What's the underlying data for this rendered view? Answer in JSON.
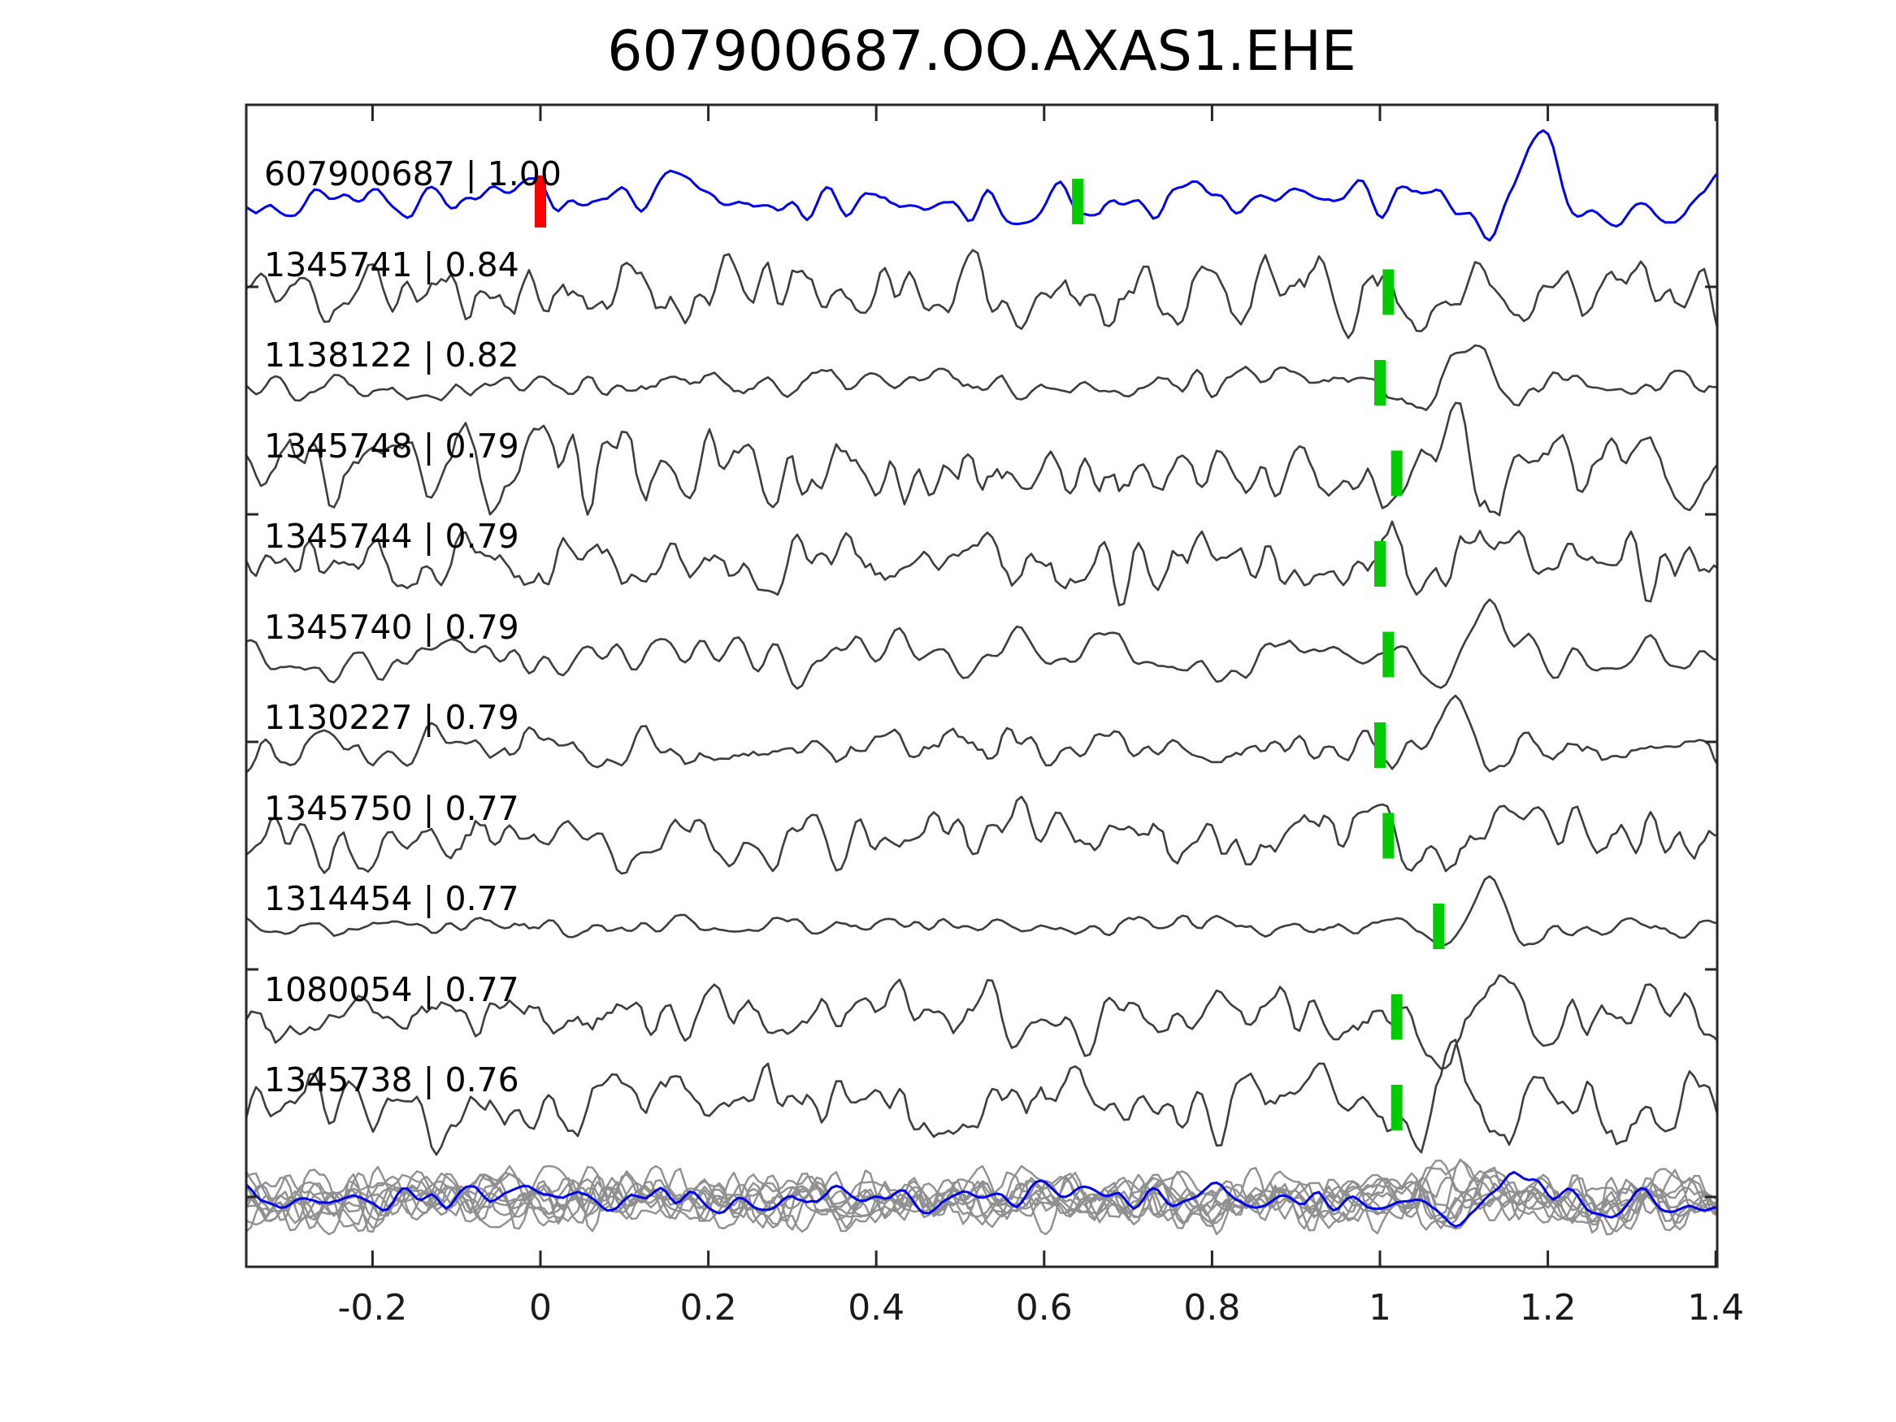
{
  "figure": {
    "title": "607900687.OO.AXAS1.EHE"
  },
  "chart_data": {
    "type": "line",
    "subtype": "seismic-waveform-stack",
    "title": "607900687.OO.AXAS1.EHE",
    "xlabel": "",
    "ylabel": "",
    "xlim": [
      -0.35,
      1.4
    ],
    "grid": false,
    "legend": false,
    "x_ticks": [
      -0.2,
      0,
      0.2,
      0.4,
      0.6,
      0.8,
      1.0,
      1.2,
      1.4
    ],
    "x_tick_labels": [
      "-0.2",
      "0",
      "0.2",
      "0.4",
      "0.6",
      "0.8",
      "1",
      "1.2",
      "1.4"
    ],
    "colors": {
      "template_trace": "#0000ee",
      "detection_trace": "#3d3d3d",
      "overlay_trace": "#909090",
      "pick_marker": "#00cc00",
      "origin_marker": "#ff0000",
      "axis": "#262626",
      "text": "#000000",
      "background": "#ffffff"
    },
    "traces": [
      {
        "id": "607900687",
        "correlation": "1.00",
        "label": "607900687 | 1.00",
        "role": "template",
        "color": "#0000ee",
        "origin_marker_x": 0.0,
        "pick_x": 0.64,
        "render": {
          "seed": 3,
          "amp": 38,
          "smooth": 3,
          "packets": [
            {
              "pc": 1.17,
              "A": 55,
              "w": 0.1,
              "per": 0.155,
              "ph": 0.8
            }
          ]
        }
      },
      {
        "id": "1345741",
        "correlation": "0.84",
        "label": "1345741 | 0.84",
        "role": "detection",
        "color": "#3d3d3d",
        "pick_x": 1.01,
        "render": {
          "seed": 11,
          "amp": 55,
          "smooth": 2,
          "packets": [
            {
              "pc": 1.1,
              "A": 42,
              "w": 0.09,
              "per": 0.13,
              "ph": 0.0
            }
          ]
        }
      },
      {
        "id": "1138122",
        "correlation": "0.82",
        "label": "1138122 | 0.82",
        "role": "detection",
        "color": "#3d3d3d",
        "pick_x": 1.0,
        "render": {
          "seed": 22,
          "amp": 22,
          "smooth": 2,
          "packets": [
            {
              "pc": 1.1,
              "A": 50,
              "w": 0.065,
              "per": 0.14,
              "ph": 1.2
            }
          ]
        }
      },
      {
        "id": "1345748",
        "correlation": "0.79",
        "label": "1345748 | 0.79",
        "role": "detection",
        "color": "#3d3d3d",
        "pick_x": 1.02,
        "render": {
          "seed": 33,
          "amp": 62,
          "smooth": 2,
          "packets": [
            {
              "pc": 1.09,
              "A": 38,
              "w": 0.08,
              "per": 0.12,
              "ph": 2.0
            }
          ]
        }
      },
      {
        "id": "1345744",
        "correlation": "0.79",
        "label": "1345744 | 0.79",
        "role": "detection",
        "color": "#3d3d3d",
        "pick_x": 1.0,
        "render": {
          "seed": 44,
          "amp": 55,
          "smooth": 2,
          "packets": [
            {
              "pc": 1.1,
              "A": 40,
              "w": 0.08,
              "per": 0.12,
              "ph": 0.5
            }
          ]
        }
      },
      {
        "id": "1345740",
        "correlation": "0.79",
        "label": "1345740 | 0.79",
        "role": "detection",
        "color": "#3d3d3d",
        "pick_x": 1.01,
        "render": {
          "seed": 55,
          "amp": 42,
          "smooth": 3,
          "packets": [
            {
              "pc": 1.13,
              "A": 52,
              "w": 0.1,
              "per": 0.17,
              "ph": 1.0
            }
          ]
        }
      },
      {
        "id": "1130227",
        "correlation": "0.79",
        "label": "1130227 | 0.79",
        "role": "detection",
        "color": "#3d3d3d",
        "pick_x": 1.0,
        "render": {
          "seed": 66,
          "amp": 34,
          "smooth": 2,
          "packets": [
            {
              "pc": 1.1,
              "A": 46,
              "w": 0.08,
              "per": 0.14,
              "ph": 2.5
            }
          ]
        }
      },
      {
        "id": "1345750",
        "correlation": "0.77",
        "label": "1345750 | 0.77",
        "role": "detection",
        "color": "#3d3d3d",
        "pick_x": 1.01,
        "render": {
          "seed": 77,
          "amp": 48,
          "smooth": 2,
          "packets": [
            {
              "pc": 1.12,
              "A": 52,
              "w": 0.09,
              "per": 0.15,
              "ph": 0.3
            }
          ]
        }
      },
      {
        "id": "1314454",
        "correlation": "0.77",
        "label": "1314454 | 0.77",
        "role": "detection",
        "color": "#3d3d3d",
        "pick_x": 1.07,
        "render": {
          "seed": 88,
          "amp": 14,
          "smooth": 2,
          "packets": [
            {
              "pc": 1.13,
              "A": 56,
              "w": 0.06,
              "per": 0.13,
              "ph": 1.6
            }
          ]
        }
      },
      {
        "id": "1080054",
        "correlation": "0.77",
        "label": "1080054 | 0.77",
        "role": "detection",
        "color": "#3d3d3d",
        "pick_x": 1.02,
        "render": {
          "seed": 99,
          "amp": 48,
          "smooth": 2,
          "packets": [
            {
              "pc": 1.12,
              "A": 48,
              "w": 0.09,
              "per": 0.14,
              "ph": 0.9
            }
          ]
        }
      },
      {
        "id": "1345738",
        "correlation": "0.76",
        "label": "1345738 | 0.76",
        "role": "detection",
        "color": "#3d3d3d",
        "pick_x": 1.02,
        "render": {
          "seed": 110,
          "amp": 58,
          "smooth": 2,
          "packets": [
            {
              "pc": 1.1,
              "A": 44,
              "w": 0.09,
              "per": 0.13,
              "ph": 1.9
            }
          ]
        }
      }
    ],
    "overlay": {
      "description": "All detection waveforms overlaid in gray with the blue template on top",
      "gray_color": "#909090",
      "template_color": "#0000ee",
      "render": {
        "gray_amp": 42,
        "packet_scale": 0.5,
        "template_amp": 24,
        "template_packet": {
          "pc": 1.15,
          "A": 26,
          "w": 0.1,
          "per": 0.18,
          "ph": 0.5
        }
      }
    }
  }
}
